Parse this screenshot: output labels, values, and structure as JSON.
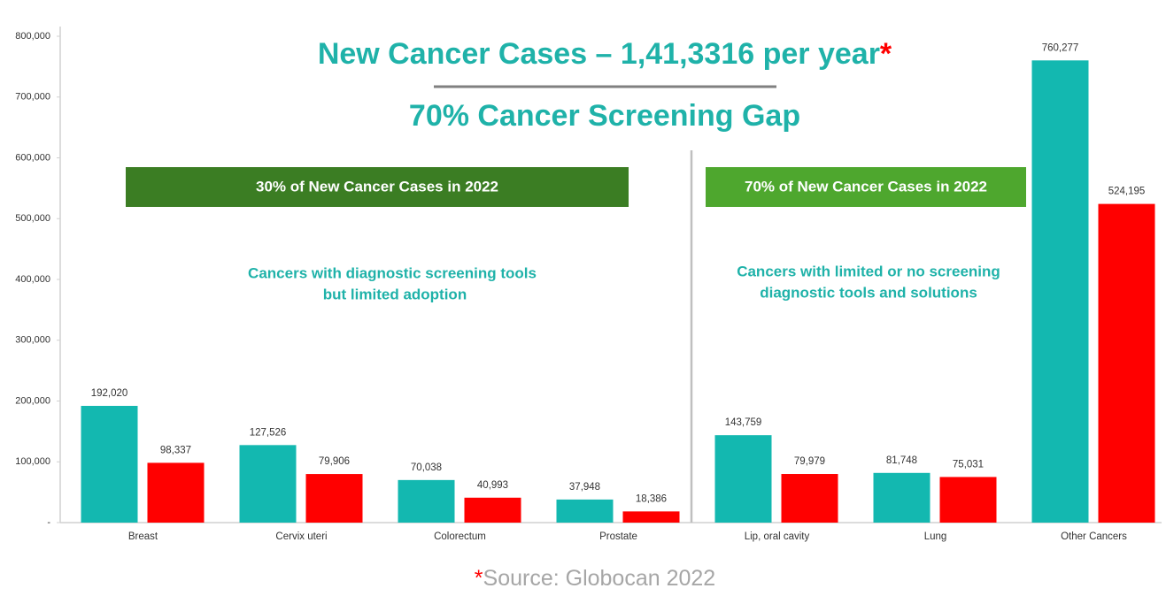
{
  "chart_data": {
    "type": "bar",
    "title": "New Cancer Cases – 1,41,3316 per year",
    "title_marker": "*",
    "subtitle": "70% Cancer Screening Gap",
    "categories": [
      "Breast",
      "Cervix uteri",
      "Colorectum",
      "Prostate",
      "Lip, oral cavity",
      "Lung",
      "Other Cancers"
    ],
    "series": [
      {
        "color": "#13b8b0",
        "values": [
          192020,
          127526,
          70038,
          37948,
          143759,
          81748,
          760277
        ],
        "value_labels": [
          "192,020",
          "127,526",
          "70,038",
          "37,948",
          "143,759",
          "81,748",
          "760,277"
        ]
      },
      {
        "color": "#ff0000",
        "values": [
          98337,
          79906,
          40993,
          18386,
          79979,
          75031,
          524195
        ],
        "value_labels": [
          "98,337",
          "79,906",
          "40,993",
          "18,386",
          "79,979",
          "75,031",
          "524,195"
        ]
      }
    ],
    "ylim": [
      0,
      800000
    ],
    "yticks": [
      {
        "value": 0,
        "label": "-"
      },
      {
        "value": 100000,
        "label": "100,000"
      },
      {
        "value": 200000,
        "label": "200,000"
      },
      {
        "value": 300000,
        "label": "300,000"
      },
      {
        "value": 400000,
        "label": "400,000"
      },
      {
        "value": 500000,
        "label": "500,000"
      },
      {
        "value": 600000,
        "label": "600,000"
      },
      {
        "value": 700000,
        "label": "700,000"
      },
      {
        "value": 800000,
        "label": "800,000"
      }
    ],
    "grid": false,
    "groups": [
      {
        "banner": "30% of New Cancer Cases  in 2022",
        "banner_color": "#3b7d23",
        "note": [
          "Cancers with diagnostic screening tools",
          "but limited adoption"
        ]
      },
      {
        "banner": "70% of New Cancer Cases  in 2022",
        "banner_color": "#4ea72e",
        "note": [
          "Cancers with limited or no screening",
          "diagnostic tools and solutions"
        ]
      }
    ],
    "source_marker": "*",
    "source": "Source: Globocan 2022"
  }
}
